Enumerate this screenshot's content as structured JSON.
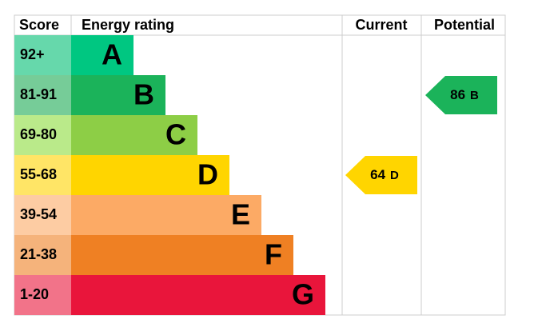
{
  "header": {
    "score": "Score",
    "rating": "Energy rating",
    "current": "Current",
    "potential": "Potential"
  },
  "bands": [
    {
      "range": "92+",
      "letter": "A",
      "color": "#00c781",
      "light": "#66d8ab"
    },
    {
      "range": "81-91",
      "letter": "B",
      "color": "#1bb35a",
      "light": "#76cc98"
    },
    {
      "range": "69-80",
      "letter": "C",
      "color": "#8dce46",
      "light": "#baea8a"
    },
    {
      "range": "55-68",
      "letter": "D",
      "color": "#ffd500",
      "light": "#ffe566"
    },
    {
      "range": "39-54",
      "letter": "E",
      "color": "#fcaa65",
      "light": "#fdcca3"
    },
    {
      "range": "21-38",
      "letter": "F",
      "color": "#ef8023",
      "light": "#f5b37b"
    },
    {
      "range": "1-20",
      "letter": "G",
      "color": "#e9153b",
      "light": "#f27389"
    }
  ],
  "current": {
    "value": 64,
    "rating": "D"
  },
  "potential": {
    "value": 86,
    "rating": "B"
  }
}
